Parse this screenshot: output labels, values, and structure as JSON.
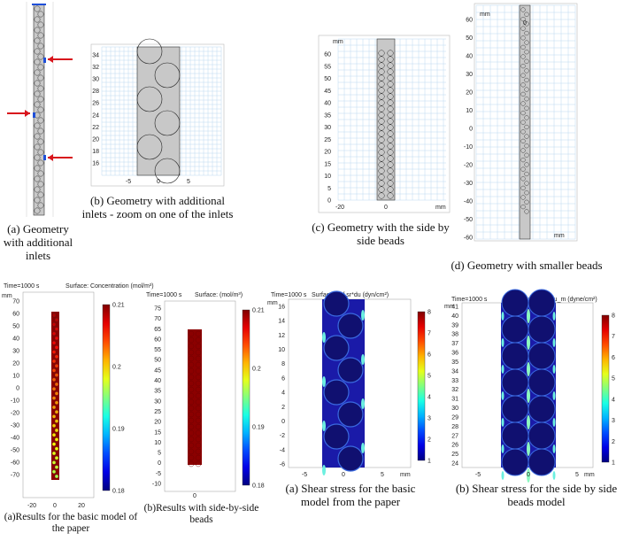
{
  "captions": {
    "a": "(a) Geometry with additional inlets",
    "b": "(b) Geometry with additional inlets - zoom on one of the inlets",
    "c": "(c) Geometry with the side by side beads",
    "d": "(d) Geometry with smaller beads",
    "e": "(a)Results for the basic model of the paper",
    "f": "(b)Results with side-by-side beads",
    "g": "(a) Shear stress for the basic model from the paper",
    "h": "(b) Shear stress for the side by side beads model"
  },
  "panel_e": {
    "time": "Time=1000 s",
    "surface": "Surface: Concentration (mol/m³)",
    "unit": "mm",
    "y_ticks": [
      "70",
      "60",
      "50",
      "40",
      "30",
      "20",
      "10",
      "0",
      "-10",
      "-20",
      "-30",
      "-40",
      "-50",
      "-60",
      "-70"
    ],
    "x_ticks": [
      "-20",
      "0",
      "20"
    ],
    "colorbar": [
      "0.21",
      "0.2",
      "0.19",
      "0.18"
    ]
  },
  "panel_f": {
    "time": "Time=1000 s",
    "surface": "Surface: (mol/m³)",
    "y_ticks": [
      "75",
      "70",
      "65",
      "60",
      "55",
      "50",
      "45",
      "40",
      "35",
      "30",
      "25",
      "20",
      "15",
      "10",
      "5",
      "0",
      "-5",
      "-10"
    ],
    "x_ticks": [
      "0"
    ],
    "colorbar": [
      "0.21",
      "0.2",
      "0.19",
      "0.18"
    ]
  },
  "panel_g": {
    "time": "Time=1000 s",
    "surface": "Surface: spf.sr*du (dyn/cm²)",
    "unit": "mm",
    "y_ticks": [
      "16",
      "14",
      "12",
      "10",
      "8",
      "6",
      "4",
      "2",
      "0",
      "-2",
      "-4",
      "-6"
    ],
    "x_ticks": [
      "-5",
      "0",
      "5"
    ],
    "colorbar": [
      "8",
      "7",
      "6",
      "5",
      "4",
      "3",
      "2",
      "1"
    ]
  },
  "panel_h": {
    "time": "Time=1000 s",
    "surface": "Surface: spf.sr*mu_m (dyne/cm²)",
    "unit": "mm",
    "y_ticks": [
      "41",
      "40",
      "39",
      "38",
      "37",
      "36",
      "35",
      "34",
      "33",
      "32",
      "31",
      "30",
      "29",
      "28",
      "27",
      "26",
      "25",
      "24"
    ],
    "x_ticks": [
      "-5",
      "0",
      "5"
    ],
    "colorbar": [
      "8",
      "7",
      "6",
      "5",
      "4",
      "3",
      "2",
      "1"
    ]
  },
  "panel_c": {
    "unit": "mm",
    "y_ticks": [
      "60",
      "55",
      "50",
      "45",
      "40",
      "35",
      "30",
      "25",
      "20",
      "15",
      "10",
      "5",
      "0"
    ],
    "x_ticks": [
      "-20",
      "0"
    ]
  },
  "panel_d": {
    "unit": "mm",
    "y_ticks": [
      "60",
      "50",
      "40",
      "30",
      "20",
      "10",
      "0",
      "-10",
      "-20",
      "-30",
      "-40",
      "-50",
      "-60"
    ],
    "x_ticks": [
      "0"
    ]
  },
  "panel_b": {
    "y_ticks": [
      "34",
      "32",
      "30",
      "28",
      "26",
      "24",
      "22",
      "20",
      "18",
      "16"
    ],
    "x_ticks": [
      "-5",
      "0",
      "5"
    ]
  },
  "colors": {
    "grid": "#bcd8f0",
    "grey_fill": "#c8c8c8",
    "red_arrow": "#d8141c",
    "inlet_blue": "#1f4fd8",
    "dark_red": "#8b0000"
  }
}
